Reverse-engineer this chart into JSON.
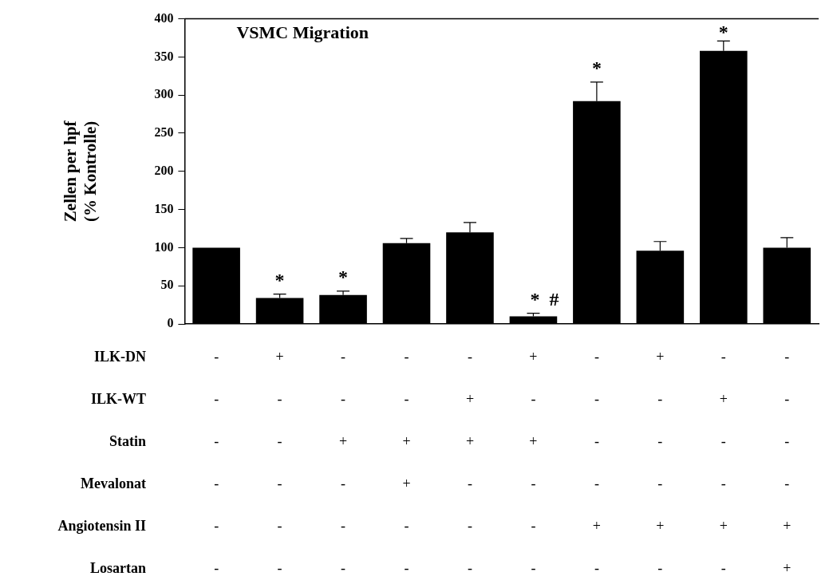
{
  "chart_data": {
    "type": "bar",
    "title": "VSMC Migration",
    "ylabel": "Zellen per hpf\n(% Kontrolle)",
    "categories": [
      "-\n-\n-\n-\n-\n-",
      "+\n-\n-\n-\n-\n-",
      "-\n-\n+\n-\n-\n-",
      "-\n-\n+\n+\n-\n-",
      "-\n+\n+\n-\n-\n-",
      "+\n-\n+\n-\n-\n-",
      "-\n-\n-\n-\n+\n-",
      "+\n-\n-\n-\n+\n-",
      "-\n+\n-\n-\n+\n-",
      "-\n-\n-\n-\n+\n+"
    ],
    "values": [
      100,
      34,
      38,
      106,
      120,
      10,
      292,
      96,
      358,
      100
    ],
    "errors": [
      null,
      [
        34,
        39
      ],
      [
        38,
        43
      ],
      [
        106,
        112
      ],
      [
        120,
        133
      ],
      [
        10,
        14
      ],
      [
        292,
        317
      ],
      [
        96,
        108
      ],
      [
        358,
        371
      ],
      [
        100,
        113
      ]
    ],
    "value_labels": [
      null,
      "*",
      "*",
      null,
      null,
      "*  #",
      "*",
      null,
      "*",
      null
    ],
    "color": "#000000",
    "ylim": [
      0,
      400
    ],
    "yticks": [
      0,
      50,
      100,
      150,
      200,
      250,
      300,
      350,
      400
    ],
    "grid": false,
    "legend": false,
    "annotations": [
      "ILK-DN",
      "ILK-WT",
      "Statin",
      "Mevalonat",
      "Angiotensin II",
      "Losartan"
    ]
  }
}
